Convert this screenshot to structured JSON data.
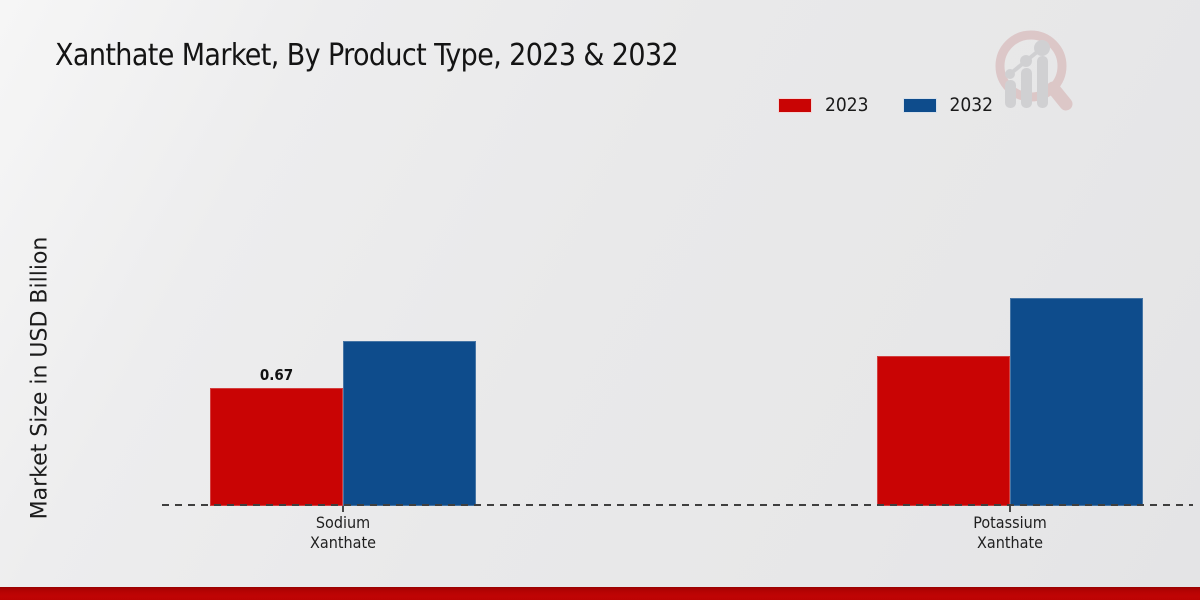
{
  "title": "Xanthate Market, By Product Type, 2023 & 2032",
  "y_axis_label": "Market Size in USD Billion",
  "legend": [
    {
      "label": "2023",
      "color": "#c90404"
    },
    {
      "label": "2032",
      "color": "#0e4c8c"
    }
  ],
  "chart_data": {
    "type": "bar",
    "title": "Xanthate Market, By Product Type, 2023 & 2032",
    "xlabel": "",
    "ylabel": "Market Size in USD Billion",
    "categories": [
      "Sodium Xanthate",
      "Potassium Xanthate"
    ],
    "category_lines": [
      [
        "Sodium",
        "Xanthate"
      ],
      [
        "Potassium",
        "Xanthate"
      ]
    ],
    "series": [
      {
        "name": "2023",
        "color": "#c90404",
        "values": [
          0.67,
          0.85
        ],
        "data_labels": [
          "0.67",
          ""
        ]
      },
      {
        "name": "2032",
        "color": "#0e4c8c",
        "values": [
          0.94,
          1.18
        ],
        "data_labels": [
          "",
          ""
        ]
      }
    ],
    "ylim": [
      0,
      2.08
    ],
    "grid": false,
    "legend_position": "top-right",
    "baseline_style": "dashed",
    "y_axis_ticks_visible": false
  },
  "watermark": {
    "icon": "market-research-future-logo"
  },
  "footer": {
    "stripe_color": "#c00404"
  }
}
